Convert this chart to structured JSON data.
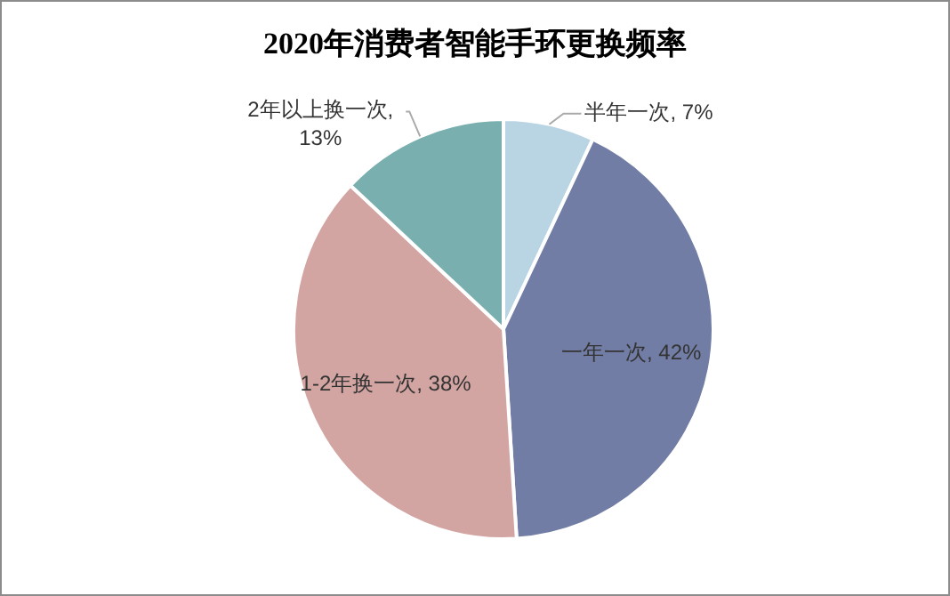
{
  "chart_data": {
    "type": "pie",
    "title": "2020年消费者智能手环更换频率",
    "categories": [
      "半年一次",
      "一年一次",
      "1-2年换一次",
      "2年以上换一次"
    ],
    "values": [
      7,
      42,
      38,
      13
    ],
    "value_labels": [
      ", 7%",
      ", 42%",
      ", 38%",
      ", 13%"
    ],
    "colors": [
      "#b9d4e3",
      "#717da4",
      "#d3a5a2",
      "#79afae"
    ]
  }
}
